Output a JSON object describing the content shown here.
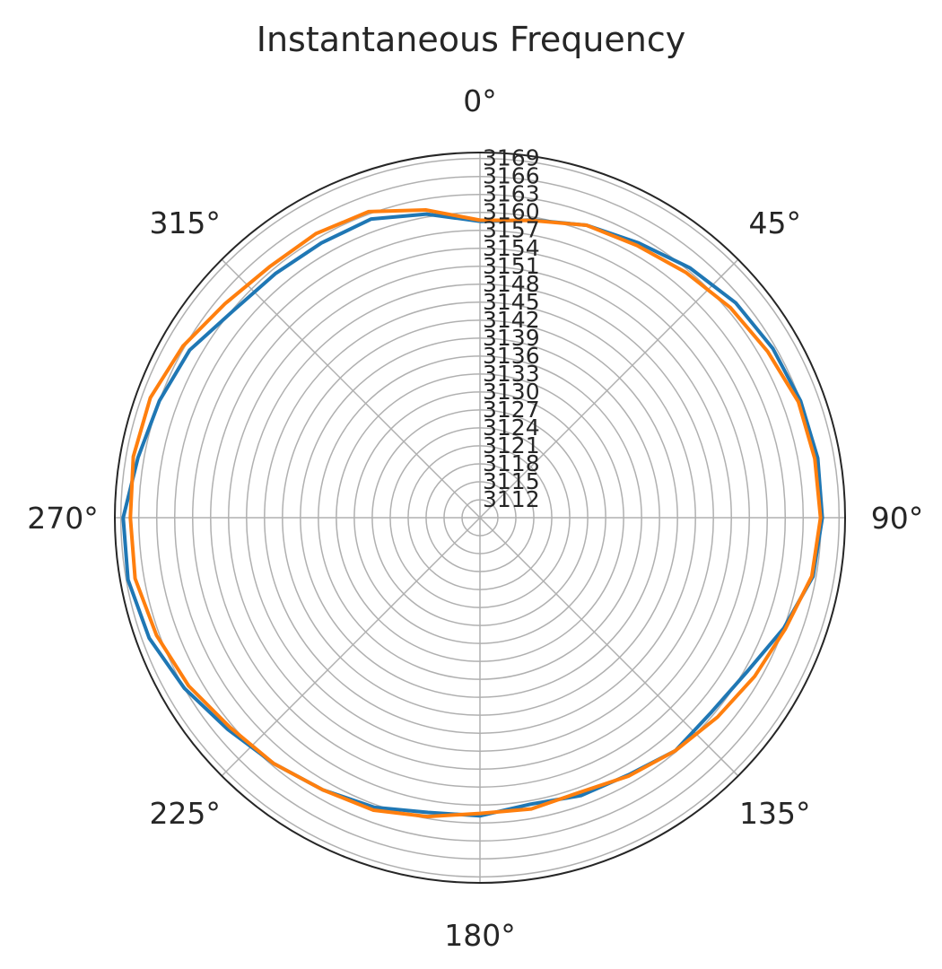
{
  "chart_data": {
    "type": "line",
    "projection": "polar",
    "title": "Instantaneous Frequency",
    "theta_direction": "clockwise",
    "theta_zero": "top",
    "theta_tick_labels": [
      "0°",
      "45°",
      "90°",
      "135°",
      "180°",
      "225°",
      "270°",
      "315°"
    ],
    "theta_ticks_deg": [
      0,
      45,
      90,
      135,
      180,
      225,
      270,
      315
    ],
    "radial_tick_labels": [
      "3112",
      "3115",
      "3118",
      "3121",
      "3124",
      "3127",
      "3130",
      "3133",
      "3136",
      "3139",
      "3142",
      "3145",
      "3148",
      "3151",
      "3154",
      "3157",
      "3160",
      "3163",
      "3166",
      "3169"
    ],
    "radial_ticks": [
      3112,
      3115,
      3118,
      3121,
      3124,
      3127,
      3130,
      3133,
      3136,
      3139,
      3142,
      3145,
      3148,
      3151,
      3154,
      3157,
      3160,
      3163,
      3166,
      3169
    ],
    "rlim": [
      3109,
      3170
    ],
    "grid": true,
    "colors": [
      "#1f77b4",
      "#ff7f0e"
    ],
    "theta_deg": [
      0,
      10,
      20,
      30,
      40,
      50,
      60,
      70,
      80,
      90,
      100,
      110,
      120,
      130,
      140,
      150,
      160,
      170,
      180,
      190,
      200,
      210,
      220,
      230,
      240,
      250,
      260,
      270,
      280,
      290,
      300,
      310,
      320,
      330,
      340,
      350
    ],
    "series": [
      {
        "color": "#1f77b4",
        "values": [
          3158.5,
          3159.5,
          3161,
          3162,
          3163.5,
          3164.8,
          3165.5,
          3166,
          3166.3,
          3166.2,
          3165.5,
          3163,
          3160.5,
          3159.5,
          3159.8,
          3158.6,
          3158.4,
          3157.6,
          3158.8,
          3159,
          3160.5,
          3161.5,
          3162.6,
          3164,
          3166,
          3167.8,
          3168.7,
          3168.6,
          3167,
          3166,
          3165,
          3162.8,
          3162.2,
          3162,
          3162.1,
          3160.5
        ]
      },
      {
        "color": "#ff7f0e",
        "values": [
          3158.7,
          3159.4,
          3161,
          3161.5,
          3162.5,
          3163.6,
          3164.5,
          3165.6,
          3165.8,
          3165.9,
          3165.3,
          3163.3,
          3162,
          3160.8,
          3159.8,
          3158.8,
          3157.8,
          3158.4,
          3158.4,
          3159.7,
          3161,
          3161.5,
          3162.6,
          3163.5,
          3165.2,
          3166.5,
          3167.5,
          3167.4,
          3167.8,
          3167.6,
          3166.3,
          3164.6,
          3163.7,
          3163.8,
          3163.4,
          3161.2
        ]
      }
    ]
  }
}
